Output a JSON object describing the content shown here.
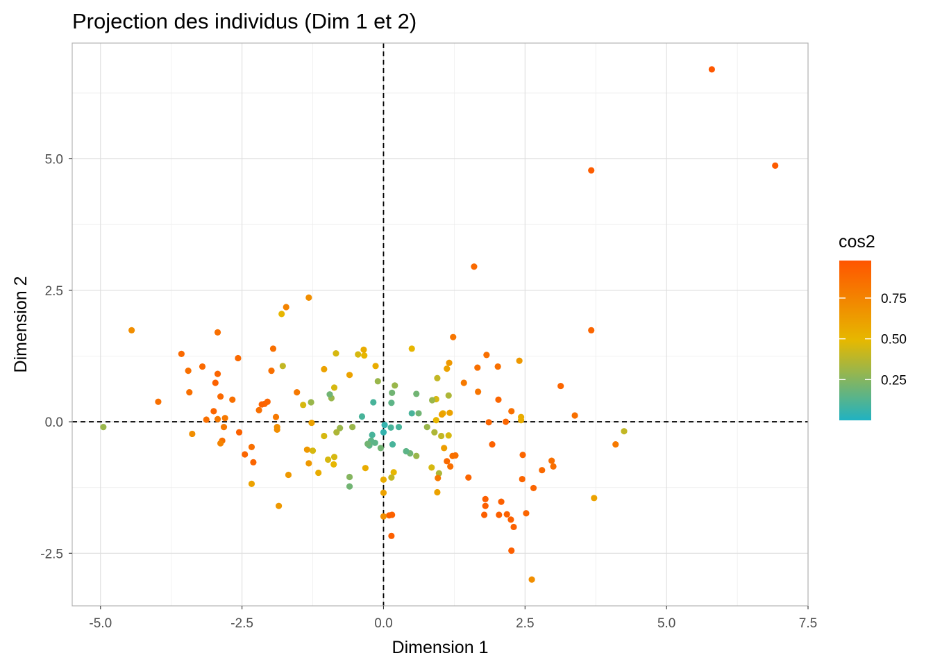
{
  "chart_data": {
    "type": "scatter",
    "title": "Projection des individus (Dim 1 et 2)",
    "xlabel": "Dimension 1",
    "ylabel": "Dimension 2",
    "xlim": [
      -5.5,
      7.5
    ],
    "ylim": [
      -3.5,
      7.2
    ],
    "x_ticks": [
      -5.0,
      -2.5,
      0.0,
      2.5,
      5.0,
      7.5
    ],
    "x_tick_labels": [
      "-5.0",
      "-2.5",
      "0.0",
      "2.5",
      "5.0",
      "7.5"
    ],
    "y_ticks": [
      -2.5,
      0.0,
      2.5,
      5.0
    ],
    "y_tick_labels": [
      "-2.5",
      "0.0",
      "2.5",
      "5.0"
    ],
    "grid": true,
    "reference_lines": {
      "x": 0,
      "y": 0,
      "style": "dashed"
    },
    "legend": {
      "title": "cos2",
      "placement": "right",
      "ticks": [
        0.25,
        0.5,
        0.75
      ],
      "tick_labels": [
        "0.25",
        "0.50",
        "0.75"
      ],
      "range": [
        0.0,
        0.98
      ],
      "colors": [
        "#20B2C2",
        "#E6B800",
        "#FF5500"
      ]
    },
    "points": [
      {
        "x": 5.8,
        "y": 6.7,
        "cos2": 0.97
      },
      {
        "x": 6.92,
        "y": 4.87,
        "cos2": 0.95
      },
      {
        "x": 3.67,
        "y": 4.78,
        "cos2": 0.94
      },
      {
        "x": 3.67,
        "y": 1.74,
        "cos2": 0.9
      },
      {
        "x": 1.6,
        "y": 2.95,
        "cos2": 0.88
      },
      {
        "x": 4.25,
        "y": -0.18,
        "cos2": 0.4
      },
      {
        "x": 4.1,
        "y": -0.43,
        "cos2": 0.8
      },
      {
        "x": 3.72,
        "y": -1.45,
        "cos2": 0.6
      },
      {
        "x": 3.38,
        "y": 0.12,
        "cos2": 0.85
      },
      {
        "x": 3.13,
        "y": 0.68,
        "cos2": 0.9
      },
      {
        "x": 2.97,
        "y": -0.74,
        "cos2": 0.85
      },
      {
        "x": 3.0,
        "y": -0.85,
        "cos2": 0.85
      },
      {
        "x": 2.8,
        "y": -0.92,
        "cos2": 0.88
      },
      {
        "x": 2.65,
        "y": -1.26,
        "cos2": 0.9
      },
      {
        "x": 2.62,
        "y": -3.0,
        "cos2": 0.7
      },
      {
        "x": 2.52,
        "y": -1.74,
        "cos2": 0.9
      },
      {
        "x": 2.46,
        "y": -0.63,
        "cos2": 0.9
      },
      {
        "x": 2.45,
        "y": -1.09,
        "cos2": 0.9
      },
      {
        "x": 2.43,
        "y": 0.09,
        "cos2": 0.55
      },
      {
        "x": 2.43,
        "y": 0.03,
        "cos2": 0.55
      },
      {
        "x": 2.4,
        "y": 1.16,
        "cos2": 0.65
      },
      {
        "x": 2.3,
        "y": -2.0,
        "cos2": 0.92
      },
      {
        "x": 2.26,
        "y": 0.2,
        "cos2": 0.85
      },
      {
        "x": 2.25,
        "y": -1.86,
        "cos2": 0.92
      },
      {
        "x": 2.26,
        "y": -2.45,
        "cos2": 0.93
      },
      {
        "x": 2.18,
        "y": -1.76,
        "cos2": 0.92
      },
      {
        "x": 2.16,
        "y": 0.0,
        "cos2": 0.9
      },
      {
        "x": 2.08,
        "y": -1.52,
        "cos2": 0.93
      },
      {
        "x": 2.04,
        "y": -1.77,
        "cos2": 0.93
      },
      {
        "x": 2.03,
        "y": 0.42,
        "cos2": 0.9
      },
      {
        "x": 2.02,
        "y": 1.05,
        "cos2": 0.85
      },
      {
        "x": 1.92,
        "y": -0.43,
        "cos2": 0.92
      },
      {
        "x": 1.86,
        "y": -0.01,
        "cos2": 0.9
      },
      {
        "x": 1.82,
        "y": 1.27,
        "cos2": 0.85
      },
      {
        "x": 1.8,
        "y": -1.47,
        "cos2": 0.93
      },
      {
        "x": 1.8,
        "y": -1.6,
        "cos2": 0.93
      },
      {
        "x": 1.78,
        "y": -1.77,
        "cos2": 0.93
      },
      {
        "x": 1.67,
        "y": 0.57,
        "cos2": 0.82
      },
      {
        "x": 1.66,
        "y": 1.03,
        "cos2": 0.85
      },
      {
        "x": 1.5,
        "y": -1.06,
        "cos2": 0.9
      },
      {
        "x": 1.42,
        "y": 0.74,
        "cos2": 0.8
      },
      {
        "x": 1.23,
        "y": 1.61,
        "cos2": 0.82
      },
      {
        "x": 1.27,
        "y": -0.64,
        "cos2": 0.85
      },
      {
        "x": 1.22,
        "y": -0.65,
        "cos2": 0.85
      },
      {
        "x": 1.18,
        "y": -0.85,
        "cos2": 0.85
      },
      {
        "x": 1.16,
        "y": 1.12,
        "cos2": 0.65
      },
      {
        "x": 1.12,
        "y": 1.01,
        "cos2": 0.6
      },
      {
        "x": 1.17,
        "y": 0.17,
        "cos2": 0.6
      },
      {
        "x": 1.15,
        "y": 0.5,
        "cos2": 0.35
      },
      {
        "x": 1.15,
        "y": -0.26,
        "cos2": 0.45
      },
      {
        "x": 1.12,
        "y": -0.75,
        "cos2": 0.88
      },
      {
        "x": 1.07,
        "y": -0.5,
        "cos2": 0.62
      },
      {
        "x": 1.05,
        "y": 0.16,
        "cos2": 0.55
      },
      {
        "x": 1.03,
        "y": 0.14,
        "cos2": 0.6
      },
      {
        "x": 1.02,
        "y": -0.27,
        "cos2": 0.4
      },
      {
        "x": 0.98,
        "y": -0.98,
        "cos2": 0.35
      },
      {
        "x": 0.96,
        "y": -1.07,
        "cos2": 0.8
      },
      {
        "x": 0.95,
        "y": -1.34,
        "cos2": 0.6
      },
      {
        "x": 0.95,
        "y": 0.83,
        "cos2": 0.4
      },
      {
        "x": 0.93,
        "y": 0.43,
        "cos2": 0.45
      },
      {
        "x": 0.93,
        "y": 0.03,
        "cos2": 0.5
      },
      {
        "x": 0.9,
        "y": -0.2,
        "cos2": 0.35
      },
      {
        "x": 0.86,
        "y": 0.41,
        "cos2": 0.3
      },
      {
        "x": 0.85,
        "y": -0.87,
        "cos2": 0.45
      },
      {
        "x": 0.77,
        "y": -0.1,
        "cos2": 0.3
      },
      {
        "x": 0.62,
        "y": 0.16,
        "cos2": 0.2
      },
      {
        "x": 0.58,
        "y": 0.53,
        "cos2": 0.2
      },
      {
        "x": 0.58,
        "y": -0.65,
        "cos2": 0.3
      },
      {
        "x": 0.5,
        "y": 1.39,
        "cos2": 0.5
      },
      {
        "x": 0.5,
        "y": 0.16,
        "cos2": 0.1
      },
      {
        "x": 0.47,
        "y": -0.6,
        "cos2": 0.2
      },
      {
        "x": 0.4,
        "y": -0.56,
        "cos2": 0.15
      },
      {
        "x": 0.27,
        "y": -0.1,
        "cos2": 0.1
      },
      {
        "x": 0.16,
        "y": -0.43,
        "cos2": 0.1
      },
      {
        "x": 0.13,
        "y": -0.11,
        "cos2": 0.1
      },
      {
        "x": 0.15,
        "y": 0.55,
        "cos2": 0.2
      },
      {
        "x": 0.14,
        "y": 0.36,
        "cos2": 0.15
      },
      {
        "x": 0.2,
        "y": 0.69,
        "cos2": 0.3
      },
      {
        "x": 0.18,
        "y": -0.96,
        "cos2": 0.5
      },
      {
        "x": 0.14,
        "y": -1.06,
        "cos2": 0.4
      },
      {
        "x": 0.14,
        "y": -2.17,
        "cos2": 0.93
      },
      {
        "x": 0.1,
        "y": -1.78,
        "cos2": 0.92
      },
      {
        "x": 0.15,
        "y": -1.77,
        "cos2": 0.92
      },
      {
        "x": 0.0,
        "y": -1.8,
        "cos2": 0.7
      },
      {
        "x": 0.0,
        "y": -1.1,
        "cos2": 0.55
      },
      {
        "x": 0.0,
        "y": -1.35,
        "cos2": 0.6
      },
      {
        "x": 0.0,
        "y": -0.2,
        "cos2": 0.05
      },
      {
        "x": 0.02,
        "y": -0.06,
        "cos2": 0.05
      },
      {
        "x": -0.05,
        "y": -0.5,
        "cos2": 0.2
      },
      {
        "x": -0.1,
        "y": 0.77,
        "cos2": 0.3
      },
      {
        "x": -0.14,
        "y": 1.06,
        "cos2": 0.55
      },
      {
        "x": -0.15,
        "y": -0.4,
        "cos2": 0.15
      },
      {
        "x": -0.18,
        "y": 0.37,
        "cos2": 0.1
      },
      {
        "x": -0.2,
        "y": -0.25,
        "cos2": 0.1
      },
      {
        "x": -0.22,
        "y": -0.36,
        "cos2": 0.15
      },
      {
        "x": -0.25,
        "y": -0.45,
        "cos2": 0.15
      },
      {
        "x": -0.28,
        "y": -0.42,
        "cos2": 0.2
      },
      {
        "x": -0.32,
        "y": -0.88,
        "cos2": 0.55
      },
      {
        "x": -0.34,
        "y": 1.26,
        "cos2": 0.5
      },
      {
        "x": -0.35,
        "y": 1.37,
        "cos2": 0.55
      },
      {
        "x": -0.38,
        "y": 0.1,
        "cos2": 0.1
      },
      {
        "x": -0.45,
        "y": 1.28,
        "cos2": 0.45
      },
      {
        "x": -0.55,
        "y": -0.1,
        "cos2": 0.3
      },
      {
        "x": -0.6,
        "y": -1.05,
        "cos2": 0.25
      },
      {
        "x": -0.6,
        "y": -1.23,
        "cos2": 0.2
      },
      {
        "x": -0.6,
        "y": 0.89,
        "cos2": 0.6
      },
      {
        "x": -0.77,
        "y": -0.12,
        "cos2": 0.3
      },
      {
        "x": -0.83,
        "y": -0.2,
        "cos2": 0.35
      },
      {
        "x": -0.87,
        "y": 0.65,
        "cos2": 0.45
      },
      {
        "x": -0.84,
        "y": 1.3,
        "cos2": 0.45
      },
      {
        "x": -0.87,
        "y": -0.67,
        "cos2": 0.45
      },
      {
        "x": -0.88,
        "y": -0.81,
        "cos2": 0.5
      },
      {
        "x": -0.92,
        "y": 0.45,
        "cos2": 0.3
      },
      {
        "x": -0.95,
        "y": 0.52,
        "cos2": 0.2
      },
      {
        "x": -0.98,
        "y": -0.72,
        "cos2": 0.45
      },
      {
        "x": -1.05,
        "y": -0.27,
        "cos2": 0.45
      },
      {
        "x": -1.05,
        "y": 1.0,
        "cos2": 0.6
      },
      {
        "x": -1.15,
        "y": -0.97,
        "cos2": 0.55
      },
      {
        "x": -1.25,
        "y": -0.55,
        "cos2": 0.45
      },
      {
        "x": -1.28,
        "y": 0.37,
        "cos2": 0.3
      },
      {
        "x": -1.27,
        "y": -0.02,
        "cos2": 0.6
      },
      {
        "x": -1.32,
        "y": 2.36,
        "cos2": 0.7
      },
      {
        "x": -1.32,
        "y": -0.79,
        "cos2": 0.65
      },
      {
        "x": -1.35,
        "y": -0.53,
        "cos2": 0.65
      },
      {
        "x": -1.42,
        "y": 0.32,
        "cos2": 0.45
      },
      {
        "x": -1.53,
        "y": 0.56,
        "cos2": 0.8
      },
      {
        "x": -1.68,
        "y": -1.01,
        "cos2": 0.65
      },
      {
        "x": -1.72,
        "y": 2.18,
        "cos2": 0.75
      },
      {
        "x": -1.78,
        "y": 1.06,
        "cos2": 0.4
      },
      {
        "x": -1.8,
        "y": 2.05,
        "cos2": 0.5
      },
      {
        "x": -1.85,
        "y": -1.6,
        "cos2": 0.65
      },
      {
        "x": -1.88,
        "y": -0.15,
        "cos2": 0.7
      },
      {
        "x": -1.88,
        "y": -0.1,
        "cos2": 0.7
      },
      {
        "x": -1.9,
        "y": 0.09,
        "cos2": 0.8
      },
      {
        "x": -1.95,
        "y": 1.39,
        "cos2": 0.85
      },
      {
        "x": -1.98,
        "y": 0.97,
        "cos2": 0.85
      },
      {
        "x": -2.05,
        "y": 0.38,
        "cos2": 0.9
      },
      {
        "x": -2.1,
        "y": 0.34,
        "cos2": 0.9
      },
      {
        "x": -2.15,
        "y": 0.33,
        "cos2": 0.92
      },
      {
        "x": -2.2,
        "y": 0.22,
        "cos2": 0.85
      },
      {
        "x": -2.3,
        "y": -0.77,
        "cos2": 0.9
      },
      {
        "x": -2.33,
        "y": -1.18,
        "cos2": 0.6
      },
      {
        "x": -2.33,
        "y": -0.48,
        "cos2": 0.85
      },
      {
        "x": -2.45,
        "y": -0.62,
        "cos2": 0.9
      },
      {
        "x": -2.55,
        "y": -0.2,
        "cos2": 0.92
      },
      {
        "x": -2.57,
        "y": 1.21,
        "cos2": 0.88
      },
      {
        "x": -2.67,
        "y": 0.42,
        "cos2": 0.85
      },
      {
        "x": -2.8,
        "y": 0.07,
        "cos2": 0.8
      },
      {
        "x": -2.82,
        "y": -0.1,
        "cos2": 0.8
      },
      {
        "x": -2.85,
        "y": -0.36,
        "cos2": 0.85
      },
      {
        "x": -2.88,
        "y": -0.41,
        "cos2": 0.75
      },
      {
        "x": -2.88,
        "y": 0.48,
        "cos2": 0.88
      },
      {
        "x": -2.93,
        "y": 0.05,
        "cos2": 0.8
      },
      {
        "x": -2.93,
        "y": 1.7,
        "cos2": 0.85
      },
      {
        "x": -2.93,
        "y": 0.91,
        "cos2": 0.9
      },
      {
        "x": -2.97,
        "y": 0.74,
        "cos2": 0.92
      },
      {
        "x": -3.0,
        "y": 0.2,
        "cos2": 0.9
      },
      {
        "x": -3.13,
        "y": 0.04,
        "cos2": 0.85
      },
      {
        "x": -3.2,
        "y": 1.05,
        "cos2": 0.88
      },
      {
        "x": -3.38,
        "y": -0.23,
        "cos2": 0.7
      },
      {
        "x": -3.43,
        "y": 0.56,
        "cos2": 0.85
      },
      {
        "x": -3.45,
        "y": 0.97,
        "cos2": 0.85
      },
      {
        "x": -3.57,
        "y": 1.29,
        "cos2": 0.88
      },
      {
        "x": -3.98,
        "y": 0.38,
        "cos2": 0.85
      },
      {
        "x": -4.45,
        "y": 1.74,
        "cos2": 0.7
      },
      {
        "x": -4.95,
        "y": -0.1,
        "cos2": 0.3
      }
    ]
  }
}
